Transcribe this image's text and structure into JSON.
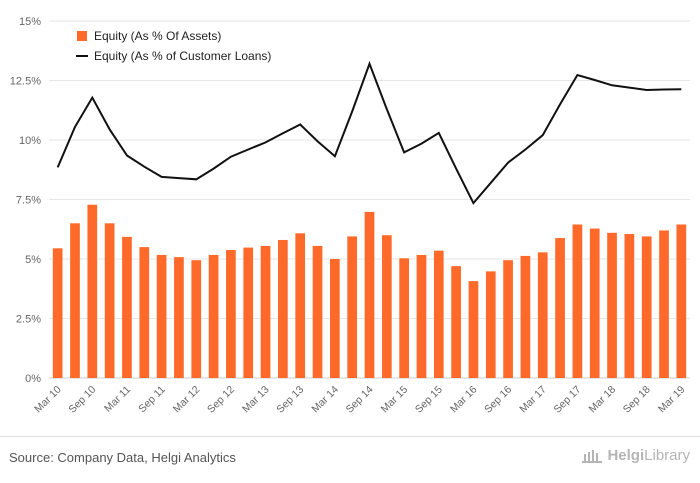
{
  "chart_data": {
    "type": "bar",
    "categories": [
      "Mar 10",
      "Jun 10",
      "Sep 10",
      "Dec 10",
      "Mar 11",
      "Jun 11",
      "Sep 11",
      "Dec 11",
      "Mar 12",
      "Jun 12",
      "Sep 12",
      "Dec 12",
      "Mar 13",
      "Jun 13",
      "Sep 13",
      "Dec 13",
      "Mar 14",
      "Jun 14",
      "Sep 14",
      "Dec 14",
      "Mar 15",
      "Jun 15",
      "Sep 15",
      "Dec 15",
      "Mar 16",
      "Jun 16",
      "Sep 16",
      "Dec 16",
      "Mar 17",
      "Jun 17",
      "Sep 17",
      "Dec 17",
      "Mar 18",
      "Jun 18",
      "Sep 18",
      "Dec 18",
      "Mar 19"
    ],
    "tick_labels": [
      "Mar 10",
      "Sep 10",
      "Mar 11",
      "Sep 11",
      "Mar 12",
      "Sep 12",
      "Mar 13",
      "Sep 13",
      "Mar 14",
      "Sep 14",
      "Mar 15",
      "Sep 15",
      "Mar 16",
      "Sep 16",
      "Mar 17",
      "Sep 17",
      "Mar 18",
      "Sep 18",
      "Mar 19"
    ],
    "series": [
      {
        "name": "Equity (As % Of Assets)",
        "type": "bar",
        "color": "#ff6a2b",
        "values": [
          5.45,
          6.5,
          7.28,
          6.5,
          5.93,
          5.5,
          5.17,
          5.08,
          4.95,
          5.17,
          5.38,
          5.48,
          5.55,
          5.8,
          6.08,
          5.55,
          5.0,
          5.95,
          6.98,
          6.0,
          5.03,
          5.17,
          5.35,
          4.7,
          4.07,
          4.48,
          4.95,
          5.13,
          5.28,
          5.88,
          6.45,
          6.28,
          6.1,
          6.05,
          5.95,
          6.2,
          6.45
        ]
      },
      {
        "name": "Equity (As % of Customer Loans)",
        "type": "line",
        "color": "#111111",
        "values": [
          8.85,
          10.55,
          11.78,
          10.45,
          9.35,
          8.88,
          8.45,
          8.4,
          8.35,
          8.8,
          9.3,
          9.6,
          9.9,
          10.28,
          10.65,
          9.95,
          9.32,
          11.2,
          13.2,
          11.3,
          9.48,
          9.85,
          10.3,
          8.8,
          7.35,
          8.2,
          9.05,
          9.6,
          10.2,
          11.5,
          12.73,
          12.52,
          12.3,
          12.2,
          12.1,
          12.12,
          12.13
        ]
      }
    ],
    "ylim": [
      0,
      15
    ],
    "yticks": [
      "0%",
      "2.5%",
      "5%",
      "7.5%",
      "10%",
      "12.5%",
      "15%"
    ],
    "ytick_values": [
      0,
      2.5,
      5,
      7.5,
      10,
      12.5,
      15
    ],
    "grid": true,
    "legend_position": "top-left"
  },
  "footer": {
    "source": "Source: Company Data, Helgi Analytics",
    "logo_part1": "Helgi",
    "logo_part2": "Library"
  }
}
